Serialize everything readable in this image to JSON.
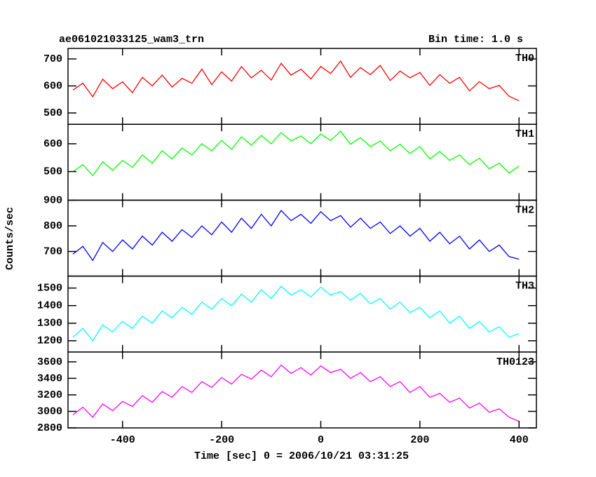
{
  "chart_data": {
    "type": "line",
    "title": "ae061021033125_wam3_trn",
    "subtitle": "Bin time: 1.0 s",
    "x_label": "Time [sec] 0 = 2006/10/21 03:31:25",
    "y_label": "Counts/sec",
    "xlim": [
      -510,
      435
    ],
    "xticks": [
      -400,
      -200,
      0,
      200,
      400
    ],
    "x": [
      -500,
      -480,
      -460,
      -440,
      -420,
      -400,
      -380,
      -360,
      -340,
      -320,
      -300,
      -280,
      -260,
      -240,
      -220,
      -200,
      -180,
      -160,
      -140,
      -120,
      -100,
      -80,
      -60,
      -40,
      -20,
      0,
      20,
      40,
      60,
      80,
      100,
      120,
      140,
      160,
      180,
      200,
      220,
      240,
      260,
      280,
      300,
      320,
      340,
      360,
      380,
      400
    ],
    "series": [
      {
        "name": "TH0",
        "color": "#ff0000",
        "ylim": [
          458,
          739
        ],
        "yticks": [
          500,
          600,
          700
        ],
        "values": [
          585,
          610,
          560,
          625,
          590,
          615,
          575,
          632,
          600,
          640,
          596,
          628,
          610,
          662,
          605,
          652,
          618,
          672,
          630,
          658,
          622,
          684,
          640,
          662,
          626,
          672,
          646,
          692,
          632,
          668,
          642,
          676,
          620,
          655,
          630,
          650,
          602,
          642,
          610,
          632,
          582,
          616,
          590,
          602,
          562,
          545
        ]
      },
      {
        "name": "TH1",
        "color": "#00ff00",
        "ylim": [
          397,
          670
        ],
        "yticks": [
          500,
          600
        ],
        "values": [
          500,
          525,
          485,
          535,
          505,
          540,
          515,
          560,
          530,
          575,
          545,
          585,
          560,
          600,
          575,
          612,
          580,
          625,
          595,
          630,
          600,
          640,
          610,
          628,
          600,
          635,
          612,
          645,
          598,
          622,
          590,
          610,
          575,
          598,
          565,
          590,
          545,
          572,
          540,
          560,
          525,
          548,
          510,
          530,
          495,
          520
        ]
      },
      {
        "name": "TH2",
        "color": "#0000ff",
        "ylim": [
          604,
          900
        ],
        "yticks": [
          700,
          800,
          900
        ],
        "values": [
          690,
          720,
          665,
          735,
          700,
          745,
          710,
          760,
          725,
          775,
          740,
          785,
          755,
          800,
          765,
          815,
          775,
          830,
          790,
          845,
          800,
          860,
          820,
          845,
          810,
          855,
          820,
          840,
          795,
          830,
          790,
          815,
          770,
          800,
          760,
          790,
          740,
          775,
          730,
          760,
          710,
          745,
          700,
          725,
          680,
          670
        ]
      },
      {
        "name": "TH3",
        "color": "#00ffff",
        "ylim": [
          1136,
          1568
        ],
        "yticks": [
          1200,
          1300,
          1400,
          1500
        ],
        "values": [
          1220,
          1270,
          1200,
          1290,
          1250,
          1310,
          1270,
          1340,
          1300,
          1370,
          1330,
          1390,
          1350,
          1420,
          1380,
          1440,
          1400,
          1465,
          1420,
          1490,
          1440,
          1510,
          1460,
          1490,
          1450,
          1505,
          1460,
          1480,
          1430,
          1470,
          1410,
          1440,
          1380,
          1420,
          1360,
          1390,
          1330,
          1370,
          1300,
          1340,
          1270,
          1310,
          1250,
          1280,
          1220,
          1240
        ]
      },
      {
        "name": "TH0123",
        "color": "#ff00ff",
        "ylim": [
          2800,
          3719
        ],
        "yticks": [
          2800,
          3000,
          3200,
          3400,
          3600
        ],
        "values": [
          2960,
          3050,
          2930,
          3090,
          3010,
          3120,
          3060,
          3190,
          3110,
          3240,
          3170,
          3300,
          3230,
          3360,
          3290,
          3410,
          3330,
          3450,
          3390,
          3500,
          3420,
          3560,
          3460,
          3530,
          3440,
          3550,
          3470,
          3510,
          3400,
          3470,
          3360,
          3420,
          3300,
          3360,
          3230,
          3300,
          3170,
          3220,
          3110,
          3160,
          3040,
          3100,
          2990,
          3030,
          2930,
          2880
        ]
      }
    ]
  }
}
